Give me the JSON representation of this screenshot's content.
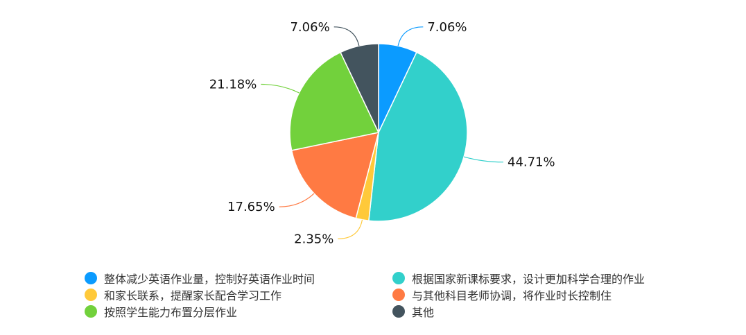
{
  "chart_data": {
    "type": "pie",
    "title": "",
    "categories": [
      "整体减少英语作业量，控制好英语作业时间",
      "根据国家新课标要求，设计更加科学合理的作业",
      "和家长联系，提醒家长配合学习工作",
      "与其他科目老师协调，将作业时长控制住",
      "按照学生能力布置分层作业",
      "其他"
    ],
    "values": [
      7.06,
      44.71,
      2.35,
      17.65,
      21.18,
      7.06
    ],
    "labels": [
      "7.06%",
      "44.71%",
      "2.35%",
      "17.65%",
      "21.18%",
      "7.06%"
    ],
    "colors": [
      "#0b9bff",
      "#32d0cb",
      "#ffc93a",
      "#ff7a43",
      "#72d13c",
      "#43545e"
    ],
    "legend_position": "bottom"
  }
}
